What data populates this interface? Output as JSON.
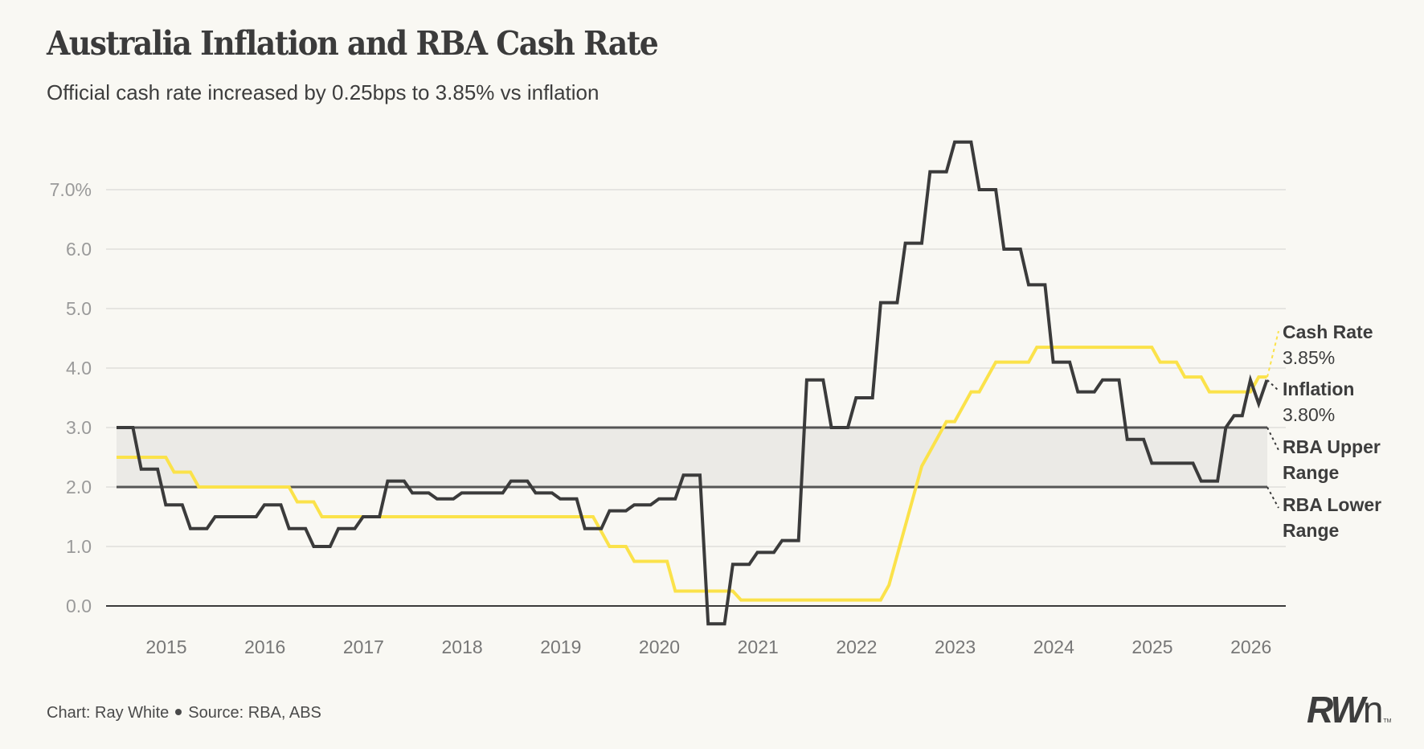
{
  "header": {
    "title": "Australia Inflation and RBA Cash Rate",
    "subtitle": "Official cash rate increased by 0.25bps to 3.85% vs inflation"
  },
  "footer": {
    "chart_credit": "Chart: Ray White",
    "source": "Source: RBA, ABS"
  },
  "logo": {
    "text_bold": "RW",
    "text_light": "n",
    "trademark": "TM"
  },
  "colors": {
    "background": "#f9f8f3",
    "inflation": "#3b3b3b",
    "cash_rate": "#fbe24a",
    "rba_band_fill": "#ebeae6",
    "rba_band_line": "#555555",
    "gridline": "#e6e5e1"
  },
  "labels": {
    "cash_rate": {
      "name": "Cash Rate",
      "value": "3.85%"
    },
    "inflation": {
      "name": "Inflation",
      "value": "3.80%"
    },
    "rba_upper": {
      "line1": "RBA Upper",
      "line2": "Range"
    },
    "rba_lower": {
      "line1": "RBA Lower",
      "line2": "Range"
    }
  },
  "chart_data": {
    "type": "line",
    "title": "Australia Inflation and RBA Cash Rate",
    "subtitle": "Official cash rate increased by 0.25bps to 3.85% vs inflation",
    "xlabel": "",
    "ylabel": "",
    "x_start": "Jul 2014",
    "x_unit": "month",
    "xlim": [
      2014.5,
      2026.17
    ],
    "ylim": [
      -0.4,
      7.8
    ],
    "yticks": [
      0,
      1,
      2,
      3,
      4,
      5,
      6,
      7
    ],
    "ytick_labels": [
      "0.0",
      "1.0",
      "2.0",
      "3.0",
      "4.0",
      "5.0",
      "6.0",
      "7.0%"
    ],
    "xticks": [
      2015,
      2016,
      2017,
      2018,
      2019,
      2020,
      2021,
      2022,
      2023,
      2024,
      2025,
      2026
    ],
    "xtick_labels": [
      "2015",
      "2016",
      "2017",
      "2018",
      "2019",
      "2020",
      "2021",
      "2022",
      "2023",
      "2024",
      "2025",
      "2026"
    ],
    "grid": true,
    "legend": "direct labels right",
    "band": {
      "name": "RBA target range",
      "lower": 2.0,
      "upper": 3.0
    },
    "series": [
      {
        "name": "Inflation",
        "frequency": "quarterly then monthly",
        "quarterly_values": [
          3.0,
          2.3,
          1.7,
          1.3,
          1.5,
          1.5,
          1.7,
          1.3,
          1.0,
          1.3,
          1.5,
          2.1,
          1.9,
          1.8,
          1.9,
          1.9,
          2.1,
          1.9,
          1.8,
          1.3,
          1.6,
          1.7,
          1.8,
          2.2,
          -0.3,
          0.7,
          0.9,
          1.1,
          3.8,
          3.0,
          3.5,
          5.1,
          6.1,
          7.3,
          7.8,
          7.0,
          6.0,
          5.4,
          4.1,
          3.6,
          3.8,
          2.8,
          2.4,
          2.4,
          2.1
        ],
        "monthly_tail_values": [
          3.0,
          3.2,
          3.2,
          3.8,
          3.4,
          3.8
        ],
        "last_value": 3.8
      },
      {
        "name": "Cash Rate",
        "frequency": "monthly",
        "changes": [
          {
            "month_index": 0,
            "value": 2.5
          },
          {
            "month_index": 7,
            "value": 2.25
          },
          {
            "month_index": 10,
            "value": 2.0
          },
          {
            "month_index": 22,
            "value": 1.75
          },
          {
            "month_index": 25,
            "value": 1.5
          },
          {
            "month_index": 59,
            "value": 1.25
          },
          {
            "month_index": 60,
            "value": 1.0
          },
          {
            "month_index": 63,
            "value": 0.75
          },
          {
            "month_index": 68,
            "value": 0.25
          },
          {
            "month_index": 76,
            "value": 0.1
          },
          {
            "month_index": 94,
            "value": 0.35
          },
          {
            "month_index": 95,
            "value": 0.85
          },
          {
            "month_index": 96,
            "value": 1.35
          },
          {
            "month_index": 97,
            "value": 1.85
          },
          {
            "month_index": 98,
            "value": 2.35
          },
          {
            "month_index": 99,
            "value": 2.6
          },
          {
            "month_index": 100,
            "value": 2.85
          },
          {
            "month_index": 101,
            "value": 3.1
          },
          {
            "month_index": 103,
            "value": 3.35
          },
          {
            "month_index": 104,
            "value": 3.6
          },
          {
            "month_index": 106,
            "value": 3.85
          },
          {
            "month_index": 107,
            "value": 4.1
          },
          {
            "month_index": 112,
            "value": 4.35
          },
          {
            "month_index": 127,
            "value": 4.1
          },
          {
            "month_index": 130,
            "value": 3.85
          },
          {
            "month_index": 133,
            "value": 3.6
          },
          {
            "month_index": 139,
            "value": 3.85
          }
        ],
        "last_month_index": 140,
        "last_value": 3.85
      }
    ]
  }
}
